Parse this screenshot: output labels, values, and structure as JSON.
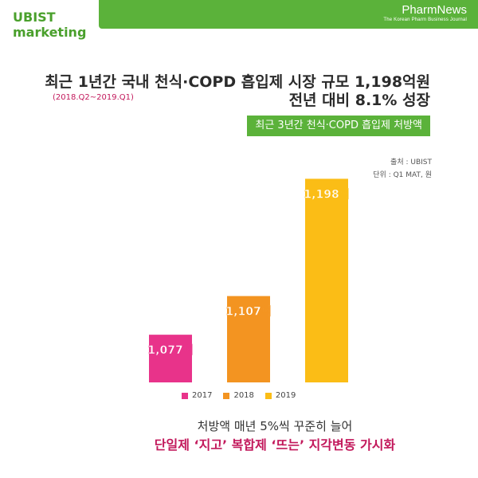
{
  "brand": {
    "line1": "UBIST",
    "line2": "marketing"
  },
  "publisher": {
    "name": "PharmNews",
    "tagline": "The Korean Pharm Business Journal"
  },
  "headline": {
    "line1": "최근 1년간 국내 천식·COPD 흡입제 시장 규모 1,198억원",
    "period": "(2018.Q2~2019.Q1)",
    "line2": "전년 대비 8.1% 성장"
  },
  "chip": "최근 3년간 천식·COPD 흡입제 처방액",
  "source": {
    "line1": "출처 : UBIST",
    "line2": "단위 : Q1 MAT, 원"
  },
  "footer": {
    "line1": "처방액 매년 5%씩 꾸준히 늘어",
    "line2": "단일제 ‘지고’ 복합제 ‘뜨는’ 지각변동 가시화"
  },
  "colors": {
    "green": "#5bb23a",
    "pink": "#e8338a",
    "orange": "#f39421",
    "yellow": "#fbbd16"
  },
  "chart_data": {
    "type": "bar",
    "categories": [
      "2017",
      "2018",
      "2019"
    ],
    "values": [
      1077,
      1107,
      1198
    ],
    "data_labels": [
      "1,077억",
      "1,107억",
      "1,198억"
    ],
    "unit": "억",
    "colors": [
      "#e8338a",
      "#f39421",
      "#fbbd16"
    ],
    "ylim": [
      1040,
      1210
    ],
    "grid": false,
    "legend_position": "bottom"
  }
}
